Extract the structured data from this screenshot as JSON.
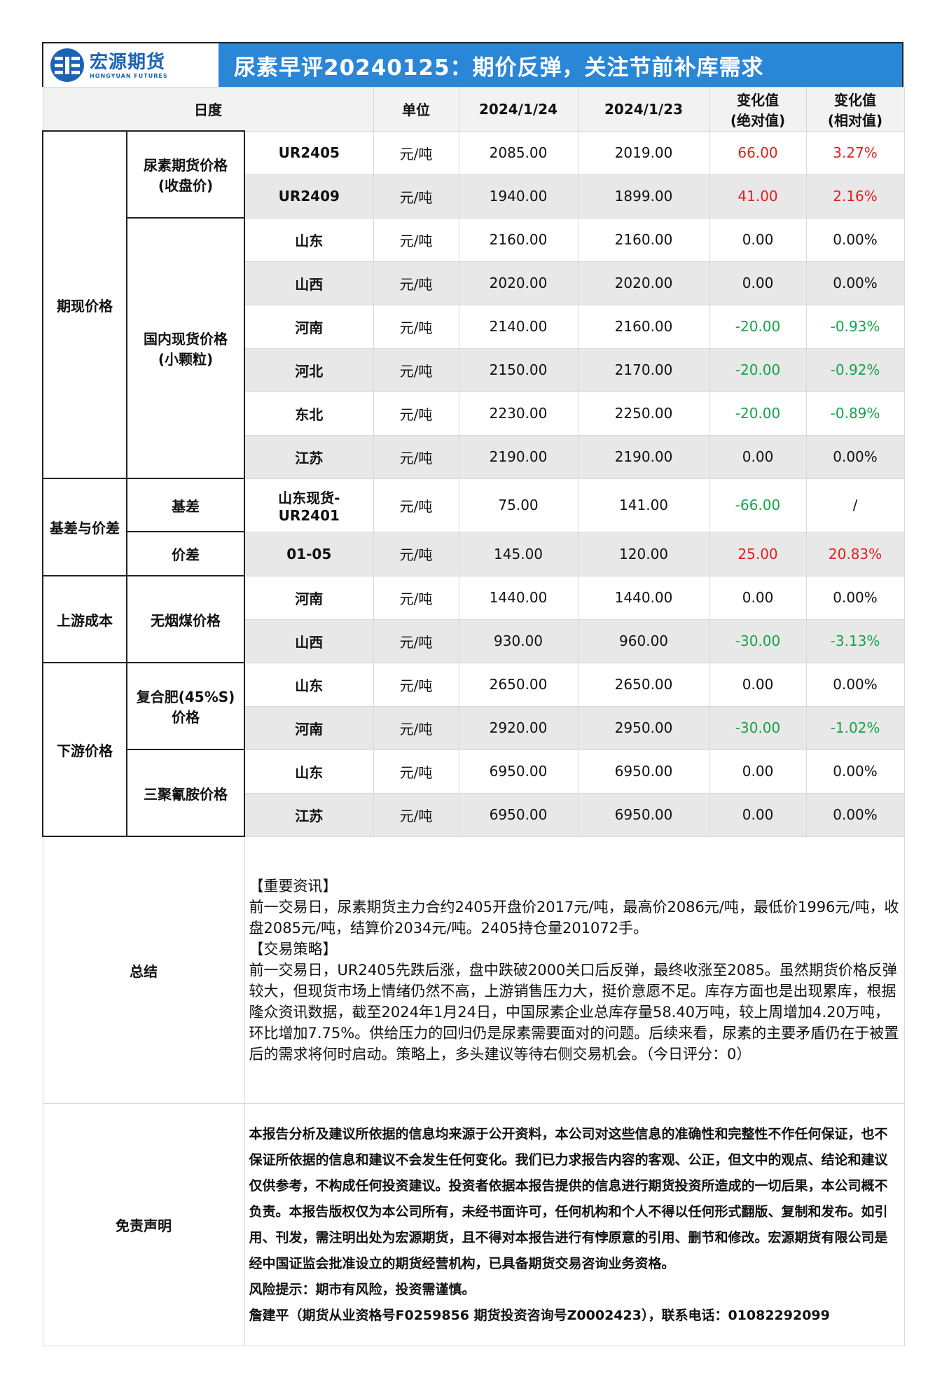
{
  "header": {
    "logo_cn": "宏源期货",
    "logo_en": "HONGYUAN FUTURES",
    "title": "尿素早评20240125：期价反弹，关注节前补库需求"
  },
  "columns": {
    "day": "日度",
    "unit": "单位",
    "date1": "2024/1/24",
    "date2": "2024/1/23",
    "abs_line1": "变化值",
    "abs_line2": "(绝对值)",
    "rel_line1": "变化值",
    "rel_line2": "(相对值)"
  },
  "groups": {
    "spot_futures": "期现价格",
    "basis_spread": "基差与价差",
    "upstream": "上游成本",
    "downstream": "下游价格"
  },
  "subgroups": {
    "futures_price_l1": "尿素期货价格",
    "futures_price_l2": "(收盘价)",
    "spot_price_l1": "国内现货价格",
    "spot_price_l2": "(小颗粒)",
    "basis": "基差",
    "spread": "价差",
    "coal": "无烟煤价格",
    "fert_l1": "复合肥(45%S)",
    "fert_l2": "价格",
    "melamine": "三聚氰胺价格"
  },
  "rows": {
    "ur2405": {
      "item": "UR2405",
      "unit": "元/吨",
      "v1": "2085.00",
      "v2": "2019.00",
      "abs": "66.00",
      "rel": "3.27%"
    },
    "ur2409": {
      "item": "UR2409",
      "unit": "元/吨",
      "v1": "1940.00",
      "v2": "1899.00",
      "abs": "41.00",
      "rel": "2.16%"
    },
    "sd": {
      "item": "山东",
      "unit": "元/吨",
      "v1": "2160.00",
      "v2": "2160.00",
      "abs": "0.00",
      "rel": "0.00%"
    },
    "sx": {
      "item": "山西",
      "unit": "元/吨",
      "v1": "2020.00",
      "v2": "2020.00",
      "abs": "0.00",
      "rel": "0.00%"
    },
    "hn": {
      "item": "河南",
      "unit": "元/吨",
      "v1": "2140.00",
      "v2": "2160.00",
      "abs": "-20.00",
      "rel": "-0.93%"
    },
    "hb": {
      "item": "河北",
      "unit": "元/吨",
      "v1": "2150.00",
      "v2": "2170.00",
      "abs": "-20.00",
      "rel": "-0.92%"
    },
    "db": {
      "item": "东北",
      "unit": "元/吨",
      "v1": "2230.00",
      "v2": "2250.00",
      "abs": "-20.00",
      "rel": "-0.89%"
    },
    "js": {
      "item": "江苏",
      "unit": "元/吨",
      "v1": "2190.00",
      "v2": "2190.00",
      "abs": "0.00",
      "rel": "0.00%"
    },
    "basis": {
      "item_l1": "山东现货-",
      "item_l2": "UR2401",
      "unit": "元/吨",
      "v1": "75.00",
      "v2": "141.00",
      "abs": "-66.00",
      "rel": "/"
    },
    "spread": {
      "item": "01-05",
      "unit": "元/吨",
      "v1": "145.00",
      "v2": "120.00",
      "abs": "25.00",
      "rel": "20.83%"
    },
    "coal_hn": {
      "item": "河南",
      "unit": "元/吨",
      "v1": "1440.00",
      "v2": "1440.00",
      "abs": "0.00",
      "rel": "0.00%"
    },
    "coal_sx": {
      "item": "山西",
      "unit": "元/吨",
      "v1": "930.00",
      "v2": "960.00",
      "abs": "-30.00",
      "rel": "-3.13%"
    },
    "fert_sd": {
      "item": "山东",
      "unit": "元/吨",
      "v1": "2650.00",
      "v2": "2650.00",
      "abs": "0.00",
      "rel": "0.00%"
    },
    "fert_hn": {
      "item": "河南",
      "unit": "元/吨",
      "v1": "2920.00",
      "v2": "2950.00",
      "abs": "-30.00",
      "rel": "-1.02%"
    },
    "mel_sd": {
      "item": "山东",
      "unit": "元/吨",
      "v1": "6950.00",
      "v2": "6950.00",
      "abs": "0.00",
      "rel": "0.00%"
    },
    "mel_js": {
      "item": "江苏",
      "unit": "元/吨",
      "v1": "6950.00",
      "v2": "6950.00",
      "abs": "0.00",
      "rel": "0.00%"
    }
  },
  "summary": {
    "label": "总结",
    "news_title": "【重要资讯】",
    "news_body": "前一交易日，尿素期货主力合约2405开盘价2017元/吨，最高价2086元/吨，最低价1996元/吨，收盘2085元/吨，结算价2034元/吨。2405持仓量201072手。",
    "strategy_title": "【交易策略】",
    "strategy_body": "前一交易日，UR2405先跌后涨，盘中跌破2000关口后反弹，最终收涨至2085。虽然期货价格反弹较大，但现货市场上情绪仍然不高，上游销售压力大，挺价意愿不足。库存方面也是出现累库，根据隆众资讯数据，截至2024年1月24日，中国尿素企业总库存量58.40万吨，较上周增加4.20万吨，环比增加7.75%。供给压力的回归仍是尿素需要面对的问题。后续来看，尿素的主要矛盾仍在于被置后的需求将何时启动。策略上，多头建议等待右侧交易机会。（今日评分：0）"
  },
  "disclaimer": {
    "label": "免责声明",
    "body": "本报告分析及建议所依据的信息均来源于公开资料，本公司对这些信息的准确性和完整性不作任何保证，也不保证所依据的信息和建议不会发生任何变化。我们已力求报告内容的客观、公正，但文中的观点、结论和建议仅供参考，不构成任何投资建议。投资者依据本报告提供的信息进行期货投资所造成的一切后果，本公司概不负责。本报告版权仅为本公司所有，未经书面许可，任何机构和个人不得以任何形式翻版、复制和发布。如引用、刊发，需注明出处为宏源期货，且不得对本报告进行有悖原意的引用、删节和修改。宏源期货有限公司是经中国证监会批准设立的期货经营机构，已具备期货交易咨询业务资格。",
    "risk": "风险提示：期市有风险，投资需谨慎。",
    "contact": "詹建平（期货从业资格号F0259856 期货投资咨询号Z0002423），联系电话：01082292099"
  },
  "colors": {
    "banner": "#2a86d6",
    "up": "#e02020",
    "down": "#16a34a",
    "shade": "#e8e8e8"
  }
}
